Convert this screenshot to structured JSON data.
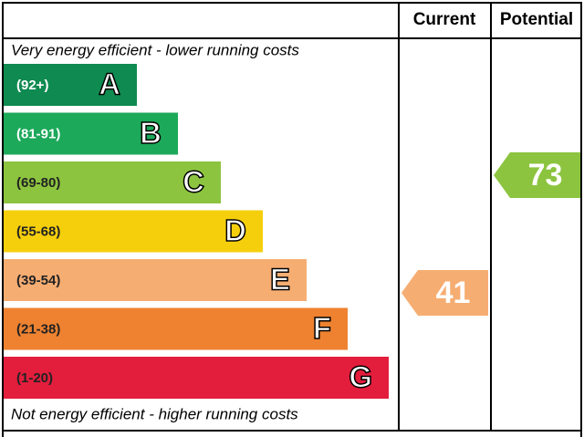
{
  "chart_data": {
    "type": "epc",
    "top_note": "Very energy efficient - lower running costs",
    "bottom_note": "Not energy efficient - higher running costs",
    "bands": [
      {
        "range": "(92+)",
        "letter": "A",
        "color": "#0f8a50"
      },
      {
        "range": "(81-91)",
        "letter": "B",
        "color": "#1ca95a"
      },
      {
        "range": "(69-80)",
        "letter": "C",
        "color": "#8cc43f"
      },
      {
        "range": "(55-68)",
        "letter": "D",
        "color": "#f5cf0c"
      },
      {
        "range": "(39-54)",
        "letter": "E",
        "color": "#f6ad72"
      },
      {
        "range": "(21-38)",
        "letter": "F",
        "color": "#ee8230"
      },
      {
        "range": "(1-20)",
        "letter": "G",
        "color": "#e31d3c"
      }
    ],
    "series": [
      {
        "name": "Current",
        "value": 41,
        "color": "#f6ad72"
      },
      {
        "name": "Potential",
        "value": 73,
        "color": "#8cc43f"
      }
    ]
  }
}
